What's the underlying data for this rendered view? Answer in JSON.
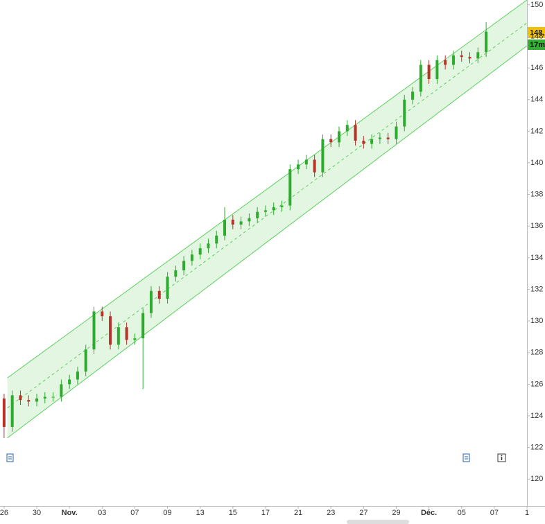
{
  "chart_data": {
    "type": "candlestick",
    "x": [
      0,
      0.5,
      1,
      1.5,
      2,
      2.5,
      3,
      3.5,
      4,
      4.5,
      5,
      5.5,
      6,
      6.5,
      7,
      7.5,
      8,
      8.5,
      9,
      9.5,
      10,
      10.5,
      11,
      11.5,
      12,
      12.5,
      13,
      13.5,
      14,
      14.5,
      15,
      15.5,
      16,
      16.5,
      17,
      17.5,
      18,
      18.5,
      19,
      19.5,
      20,
      20.5,
      21,
      21.5,
      22,
      22.5,
      23,
      23.5,
      24,
      24.5,
      25,
      25.5,
      26,
      26.5,
      27,
      27.5,
      28,
      28.5,
      29,
      29.5
    ],
    "open": [
      125.1,
      123.3,
      125.3,
      125.0,
      124.9,
      125.1,
      125.2,
      125.2,
      126.0,
      126.3,
      126.8,
      128.2,
      130.6,
      130.3,
      128.5,
      129.6,
      128.8,
      128.9,
      130.5,
      131.9,
      131.4,
      132.8,
      133.2,
      133.8,
      134.2,
      134.6,
      134.9,
      135.4,
      136.4,
      136.1,
      136.3,
      136.5,
      136.9,
      137.0,
      137.2,
      137.3,
      139.6,
      139.9,
      140.2,
      139.4,
      141.5,
      141.3,
      142.0,
      142.4,
      141.4,
      141.2,
      141.5,
      141.6,
      141.5,
      142.3,
      144.0,
      144.5,
      146.2,
      145.3,
      146.5,
      146.2,
      146.8,
      146.7,
      146.6,
      147.0
    ],
    "high": [
      125.4,
      125.6,
      125.6,
      125.3,
      125.4,
      125.5,
      125.5,
      126.3,
      126.6,
      127.1,
      128.5,
      130.9,
      130.9,
      130.6,
      129.9,
      129.9,
      129.2,
      130.8,
      132.2,
      132.2,
      133.1,
      133.5,
      134.1,
      134.5,
      134.9,
      135.2,
      135.7,
      137.2,
      136.7,
      136.6,
      136.8,
      137.2,
      137.3,
      137.5,
      137.6,
      139.9,
      140.2,
      140.5,
      140.5,
      141.8,
      141.8,
      142.3,
      142.7,
      142.7,
      141.7,
      141.8,
      141.9,
      141.9,
      142.6,
      144.3,
      144.8,
      146.5,
      146.5,
      146.8,
      146.8,
      147.1,
      147.1,
      147.0,
      147.3,
      148.9
    ],
    "low": [
      122.6,
      123.0,
      124.7,
      124.6,
      124.6,
      124.8,
      124.9,
      124.9,
      125.7,
      126.0,
      126.5,
      127.9,
      130.0,
      128.2,
      128.2,
      128.5,
      128.5,
      125.7,
      130.2,
      131.1,
      131.1,
      132.5,
      132.9,
      133.5,
      133.9,
      134.3,
      134.6,
      135.1,
      135.8,
      135.8,
      136.0,
      136.2,
      136.6,
      136.7,
      136.9,
      137.0,
      139.3,
      139.6,
      139.1,
      139.1,
      141.0,
      141.0,
      141.7,
      141.1,
      140.9,
      140.9,
      141.2,
      141.2,
      141.2,
      142.0,
      143.7,
      144.2,
      145.0,
      145.0,
      145.9,
      145.9,
      146.4,
      146.3,
      146.3,
      146.7
    ],
    "close": [
      123.3,
      125.3,
      125.0,
      124.9,
      125.1,
      125.2,
      125.2,
      126.0,
      126.3,
      126.8,
      128.2,
      130.6,
      130.3,
      128.5,
      129.6,
      128.8,
      128.9,
      130.5,
      131.9,
      131.4,
      132.8,
      133.2,
      133.8,
      134.2,
      134.6,
      134.9,
      135.4,
      136.4,
      136.1,
      136.3,
      136.5,
      136.9,
      137.0,
      137.2,
      137.3,
      139.6,
      139.9,
      140.2,
      139.4,
      141.5,
      141.3,
      142.0,
      142.4,
      141.4,
      141.2,
      141.5,
      141.6,
      141.5,
      142.3,
      144.0,
      144.5,
      146.2,
      145.3,
      146.5,
      146.2,
      146.8,
      146.7,
      146.6,
      147.0,
      148.3
    ],
    "up_color": "#2eaa2e",
    "down_color": "#b8322a",
    "channel": {
      "x": [
        0.2,
        32
      ],
      "upper": [
        126.4,
        150.3
      ],
      "middle": [
        124.5,
        148.85
      ],
      "lower": [
        122.6,
        147.4
      ],
      "color": "#5ccf5c"
    },
    "xlim": [
      -0.25,
      32
    ],
    "xticks": [
      {
        "value": 0,
        "label": "26"
      },
      {
        "value": 2,
        "label": "30"
      },
      {
        "value": 4,
        "label": "Nov."
      },
      {
        "value": 6,
        "label": "03"
      },
      {
        "value": 8,
        "label": "07"
      },
      {
        "value": 10,
        "label": "09"
      },
      {
        "value": 12,
        "label": "13"
      },
      {
        "value": 14,
        "label": "15"
      },
      {
        "value": 16,
        "label": "17"
      },
      {
        "value": 18,
        "label": "21"
      },
      {
        "value": 20,
        "label": "23"
      },
      {
        "value": 22,
        "label": "27"
      },
      {
        "value": 24,
        "label": "29"
      },
      {
        "value": 26,
        "label": "Déc."
      },
      {
        "value": 28,
        "label": "05"
      },
      {
        "value": 30,
        "label": "07"
      },
      {
        "value": 32,
        "label": "1"
      }
    ],
    "ylim": [
      118.3,
      150.3
    ],
    "yticks": [
      120,
      122,
      124,
      126,
      128,
      130,
      132,
      134,
      136,
      138,
      140,
      142,
      144,
      146,
      148,
      150
    ],
    "grid": false,
    "annotations": [
      "148,",
      "17m"
    ]
  }
}
